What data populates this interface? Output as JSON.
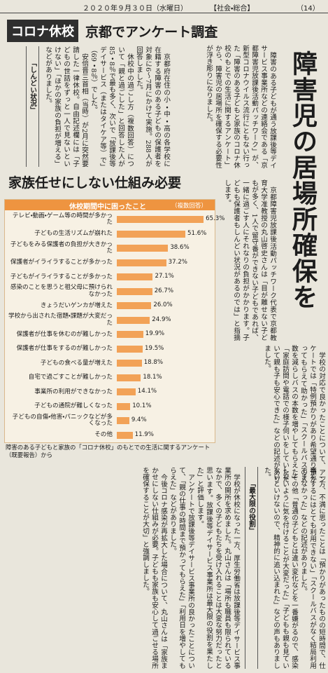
{
  "header": {
    "date": "２０２０年９月３０日（水曜日）",
    "section": "【社会・総合】",
    "page": "（14）"
  },
  "article": {
    "kicker": "コロナ休校",
    "headline": "京都でアンケート調査",
    "title": "障害児の居場所確保を",
    "subtitle": "家族任せにしない仕組み必要",
    "lead": "障害のある子どもが通う放課後等デイサービス事業所などの連絡会である「京都障害児放課後活動パッチワーク」が、新型コロナウイルス流行にともない行った「障害のある子どもと家族のコロナ休校のもとでの生活に関するアンケート」から、障害児の居場所を確保する必要性が浮き彫りになりました。",
    "paragraphs": [
      "京都府在住の小・中・高の各学校に在籍する障害のある子どもの保護者を対象に6〜7月にかけて実施。288人が回答しました。",
      "休校中の過ごし方（複数回答）について「親と過ごした」と回答した人が85・8％で最も多く、次いで「放課後等デイサービス（またはタイケア等）で」（69・8％）でした。",
      "安倍晋三首相（当時）が2月に突然要請した一律休校。自由記述欄には「子どもの世話をずっと一人で見ないといけない」「ほかの家族の負担が増える」などがありました。",
      "京都障害児放課後活動パッチワーク代表で京都教育大学准教授の丸山啓史さんは「目が離せない子どもが多く、1人で留守番ができない子どもであれば、一緒に過ごす人にそれなりの負担がかかります。子どもも保護者もしんどい状況があるのでは」と指摘します。",
      "学校の対応で良かったことについて、アンケートでは「特例預かりがあり希望通り預かってもらえて助かった」「スクールバスの人数を減らしバスの本数を増やしてもらえた」「家庭訪問や電話での様子伺いをしていただいて親も子も安心できた」などの記述がありました。",
      "一方、不満に思ったことは「預かりがあったものの短時間で、仕事をするにはとても利用できない」「スクールバスがなく結局利用できなかった」などの記述がありました。",
      "その他「普通の子どもとは違い変化などを一番嫌がるので、感染しないように気を付けることが大変だった」「子どもも親も見ていないといけないので、精神的に追い込まれた」などの声もありました。",
      "学校が休校になった一方、厚生労働省は放課後等デイサービス事業所の開所を求めました。丸山さんは「場所も職員も限られているなかで、多くの子どもたちを受け入れることは大変な努力だったと思います。放課後等デイサービス事業所は最大限の役割を果たした」と評価します。",
      "アンケートで放課後等デイサービス事業所の良かったことについて、「親の仕事の時間まで預かってもらえた」「利用日を増やしてもらえた」などがありました。",
      "今後コロナ感染が再拡大した場合について、丸山さんは「家族まかせにしない仕組みが必要。子どもも家族も安心して過ごせる場所を確保することが大切」と強調しました。"
    ],
    "subheads": [
      "「しんどい状況」",
      "「最大限の役割」"
    ]
  },
  "chart_data": {
    "type": "bar",
    "title": "休校期間中に困ったこと",
    "note": "（複数回答）",
    "categories": [
      "テレビ・動画・ゲーム等の時間が多かった",
      "子どもの生活リズムが崩れた",
      "子どもをみる保護者の負担が大きかった",
      "保護者がイライラすることが多かった",
      "子どもがイライラすることが多かった",
      "感染のことを思うと祖父母に預けられなかった",
      "きょうだいゲンカが増えた",
      "学校から出された宿題・課題が大変だった",
      "保護者が仕事を休むのが難しかった",
      "保護者が仕事をするのが難しかった",
      "子どもの食べる量が増えた",
      "自宅で過ごすことが難しかった",
      "事業所の利用ができなかった",
      "子どもの通院が難しくなった",
      "子どもの自傷・他害・パニックなどが多くなった",
      "その他"
    ],
    "values": [
      65.3,
      51.6,
      38.6,
      37.2,
      27.1,
      26.7,
      26.0,
      24.9,
      19.9,
      19.5,
      18.8,
      18.1,
      14.1,
      10.1,
      9.4,
      11.9
    ],
    "value_labels": [
      "65.3%",
      "51.6%",
      "38.6%",
      "37.2%",
      "27.1%",
      "26.7%",
      "26.0%",
      "24.9%",
      "19.9%",
      "19.5%",
      "18.8%",
      "18.1%",
      "14.1%",
      "10.1%",
      "9.4%",
      "11.9%"
    ],
    "color": "#f2a257",
    "caption": "障害のある子どもと家族の「コロナ休校」のもとでの生活に関するアンケート（既要報告）から"
  }
}
